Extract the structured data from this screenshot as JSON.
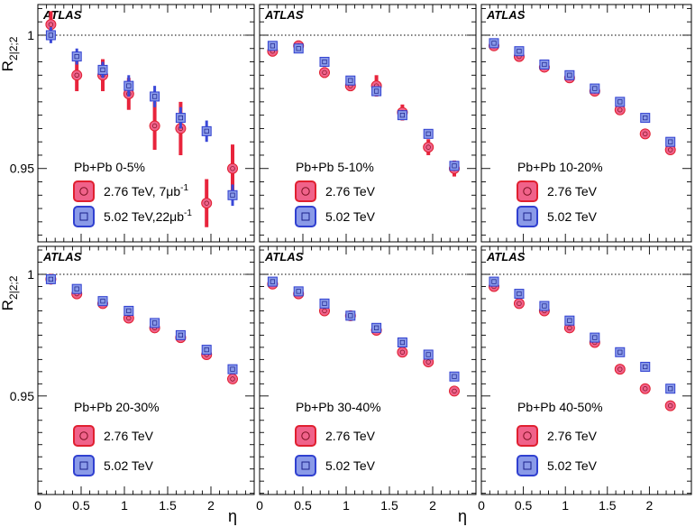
{
  "figure": {
    "ylabel_main": "R",
    "ylabel_sub": "2|2;2",
    "xlabel": "η",
    "experiment": "ATLAS",
    "ref_value": 1,
    "xlim": [
      0,
      2.5
    ],
    "x_ticks": [
      "0",
      "0.5",
      "1",
      "1.5",
      "2"
    ],
    "x_ticks_last": [
      "0",
      "0.5",
      "1",
      "1.5",
      "2"
    ],
    "rows": [
      {
        "ylim": [
          0.9225,
          1.0115
        ],
        "y_ticks": [
          {
            "v": 1,
            "label": "1"
          },
          {
            "v": 0.95,
            "label": "0.95"
          }
        ]
      },
      {
        "ylim": [
          0.9095,
          1.0115
        ],
        "y_ticks": [
          {
            "v": 1,
            "label": "1"
          },
          {
            "v": 0.95,
            "label": "0.95"
          }
        ]
      }
    ],
    "colors": {
      "s276_fill": "#f0628a",
      "s276_edge": "#e02030",
      "s276_err": "#e8243c",
      "s502_fill": "#8a9ae8",
      "s502_edge": "#3040d0",
      "s502_err": "#3a48d8"
    }
  },
  "chart_data": [
    {
      "type": "scatter",
      "panel": 0,
      "row": 0,
      "col": 0,
      "title": "Pb+Pb 0-5%",
      "xlabel": "η",
      "ylabel": "R2|2;2",
      "ylim": [
        0.9225,
        1.0115
      ],
      "legend": [
        {
          "key": "s276",
          "label": "2.76 TeV, 7μb",
          "sup": "-1"
        },
        {
          "key": "s502",
          "label": "5.02 TeV,22μb",
          "sup": "-1"
        }
      ],
      "series": [
        {
          "name": "2.76 TeV",
          "key": "s276",
          "x": [
            0.15,
            0.45,
            0.75,
            1.05,
            1.35,
            1.65,
            1.95,
            2.25
          ],
          "y": [
            1.004,
            0.985,
            0.985,
            0.978,
            0.966,
            0.965,
            0.937,
            0.95
          ],
          "err": [
            0.005,
            0.006,
            0.006,
            0.006,
            0.009,
            0.01,
            0.009,
            0.009
          ]
        },
        {
          "name": "5.02 TeV",
          "key": "s502",
          "x": [
            0.15,
            0.45,
            0.75,
            1.05,
            1.35,
            1.65,
            1.95,
            2.25
          ],
          "y": [
            1.0,
            0.992,
            0.987,
            0.981,
            0.977,
            0.969,
            0.964,
            0.94
          ],
          "err": [
            0.003,
            0.003,
            0.003,
            0.004,
            0.004,
            0.004,
            0.004,
            0.004
          ]
        }
      ]
    },
    {
      "type": "scatter",
      "panel": 1,
      "row": 0,
      "col": 1,
      "title": "Pb+Pb 5-10%",
      "xlabel": "η",
      "ylabel": "R2|2;2",
      "ylim": [
        0.9225,
        1.0115
      ],
      "legend": [
        {
          "key": "s276",
          "label": "2.76 TeV",
          "sup": ""
        },
        {
          "key": "s502",
          "label": "5.02 TeV",
          "sup": ""
        }
      ],
      "series": [
        {
          "name": "2.76 TeV",
          "key": "s276",
          "x": [
            0.15,
            0.45,
            0.75,
            1.05,
            1.35,
            1.65,
            1.95,
            2.25
          ],
          "y": [
            0.994,
            0.996,
            0.986,
            0.981,
            0.981,
            0.971,
            0.958,
            0.95
          ],
          "err": [
            0.002,
            0.002,
            0.002,
            0.002,
            0.004,
            0.003,
            0.003,
            0.003
          ]
        },
        {
          "name": "5.02 TeV",
          "key": "s502",
          "x": [
            0.15,
            0.45,
            0.75,
            1.05,
            1.35,
            1.65,
            1.95,
            2.25
          ],
          "y": [
            0.996,
            0.995,
            0.99,
            0.983,
            0.979,
            0.97,
            0.963,
            0.951
          ],
          "err": [
            0.001,
            0.001,
            0.001,
            0.001,
            0.001,
            0.001,
            0.001,
            0.001
          ]
        }
      ]
    },
    {
      "type": "scatter",
      "panel": 2,
      "row": 0,
      "col": 2,
      "title": "Pb+Pb 10-20%",
      "xlabel": "η",
      "ylabel": "R2|2;2",
      "ylim": [
        0.9225,
        1.0115
      ],
      "legend": [
        {
          "key": "s276",
          "label": "2.76 TeV",
          "sup": ""
        },
        {
          "key": "s502",
          "label": "5.02 TeV",
          "sup": ""
        }
      ],
      "series": [
        {
          "name": "2.76 TeV",
          "key": "s276",
          "x": [
            0.15,
            0.45,
            0.75,
            1.05,
            1.35,
            1.65,
            1.95,
            2.25
          ],
          "y": [
            0.996,
            0.992,
            0.988,
            0.984,
            0.979,
            0.972,
            0.963,
            0.957
          ],
          "err": [
            0.001,
            0.001,
            0.001,
            0.001,
            0.001,
            0.001,
            0.001,
            0.001
          ]
        },
        {
          "name": "5.02 TeV",
          "key": "s502",
          "x": [
            0.15,
            0.45,
            0.75,
            1.05,
            1.35,
            1.65,
            1.95,
            2.25
          ],
          "y": [
            0.997,
            0.994,
            0.989,
            0.985,
            0.98,
            0.975,
            0.969,
            0.96
          ],
          "err": [
            0.001,
            0.001,
            0.001,
            0.001,
            0.001,
            0.001,
            0.001,
            0.001
          ]
        }
      ]
    },
    {
      "type": "scatter",
      "panel": 3,
      "row": 1,
      "col": 0,
      "title": "Pb+Pb 20-30%",
      "xlabel": "η",
      "ylabel": "R2|2;2",
      "ylim": [
        0.9095,
        1.0115
      ],
      "legend": [
        {
          "key": "s276",
          "label": "2.76 TeV",
          "sup": ""
        },
        {
          "key": "s502",
          "label": "5.02 TeV",
          "sup": ""
        }
      ],
      "series": [
        {
          "name": "2.76 TeV",
          "key": "s276",
          "x": [
            0.15,
            0.45,
            0.75,
            1.05,
            1.35,
            1.65,
            1.95,
            2.25
          ],
          "y": [
            0.998,
            0.992,
            0.988,
            0.982,
            0.978,
            0.974,
            0.967,
            0.957
          ],
          "err": [
            0.001,
            0.001,
            0.001,
            0.001,
            0.001,
            0.001,
            0.001,
            0.001
          ]
        },
        {
          "name": "5.02 TeV",
          "key": "s502",
          "x": [
            0.15,
            0.45,
            0.75,
            1.05,
            1.35,
            1.65,
            1.95,
            2.25
          ],
          "y": [
            0.998,
            0.994,
            0.989,
            0.985,
            0.98,
            0.975,
            0.969,
            0.961
          ],
          "err": [
            0.001,
            0.001,
            0.001,
            0.001,
            0.001,
            0.001,
            0.001,
            0.001
          ]
        }
      ]
    },
    {
      "type": "scatter",
      "panel": 4,
      "row": 1,
      "col": 1,
      "title": "Pb+Pb 30-40%",
      "xlabel": "η",
      "ylabel": "R2|2;2",
      "ylim": [
        0.9095,
        1.0115
      ],
      "legend": [
        {
          "key": "s276",
          "label": "2.76 TeV",
          "sup": ""
        },
        {
          "key": "s502",
          "label": "5.02 TeV",
          "sup": ""
        }
      ],
      "series": [
        {
          "name": "2.76 TeV",
          "key": "s276",
          "x": [
            0.15,
            0.45,
            0.75,
            1.05,
            1.35,
            1.65,
            1.95,
            2.25
          ],
          "y": [
            0.996,
            0.992,
            0.985,
            0.983,
            0.977,
            0.968,
            0.964,
            0.952
          ],
          "err": [
            0.001,
            0.001,
            0.001,
            0.001,
            0.001,
            0.001,
            0.001,
            0.001
          ]
        },
        {
          "name": "5.02 TeV",
          "key": "s502",
          "x": [
            0.15,
            0.45,
            0.75,
            1.05,
            1.35,
            1.65,
            1.95,
            2.25
          ],
          "y": [
            0.997,
            0.993,
            0.988,
            0.983,
            0.978,
            0.972,
            0.967,
            0.958
          ],
          "err": [
            0.001,
            0.001,
            0.001,
            0.001,
            0.001,
            0.001,
            0.001,
            0.001
          ]
        }
      ]
    },
    {
      "type": "scatter",
      "panel": 5,
      "row": 1,
      "col": 2,
      "title": "Pb+Pb 40-50%",
      "xlabel": "η",
      "ylabel": "R2|2;2",
      "ylim": [
        0.9095,
        1.0115
      ],
      "legend": [
        {
          "key": "s276",
          "label": "2.76 TeV",
          "sup": ""
        },
        {
          "key": "s502",
          "label": "5.02 TeV",
          "sup": ""
        }
      ],
      "series": [
        {
          "name": "2.76 TeV",
          "key": "s276",
          "x": [
            0.15,
            0.45,
            0.75,
            1.05,
            1.35,
            1.65,
            1.95,
            2.25
          ],
          "y": [
            0.995,
            0.988,
            0.985,
            0.978,
            0.972,
            0.961,
            0.953,
            0.946
          ],
          "err": [
            0.001,
            0.001,
            0.001,
            0.002,
            0.002,
            0.002,
            0.002,
            0.002
          ]
        },
        {
          "name": "5.02 TeV",
          "key": "s502",
          "x": [
            0.15,
            0.45,
            0.75,
            1.05,
            1.35,
            1.65,
            1.95,
            2.25
          ],
          "y": [
            0.997,
            0.992,
            0.987,
            0.981,
            0.974,
            0.968,
            0.962,
            0.953
          ],
          "err": [
            0.001,
            0.001,
            0.001,
            0.001,
            0.001,
            0.001,
            0.001,
            0.001
          ]
        }
      ]
    }
  ]
}
